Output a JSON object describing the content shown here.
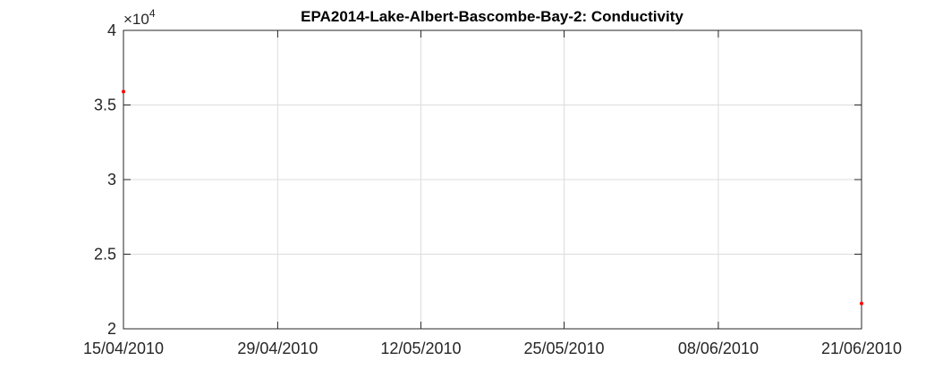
{
  "chart_data": {
    "type": "scatter",
    "title": "EPA2014-Lake-Albert-Bascombe-Bay-2: Conductivity",
    "xlabel": "",
    "ylabel": "",
    "x_tick_labels": [
      "15/04/2010",
      "29/04/2010",
      "12/05/2010",
      "25/05/2010",
      "08/06/2010",
      "21/06/2010"
    ],
    "xlim": [
      "15/04/2010",
      "21/06/2010"
    ],
    "y_tick_labels": [
      "2",
      "2.5",
      "3",
      "3.5",
      "4"
    ],
    "y_ticks": [
      2,
      2.5,
      3,
      3.5,
      4
    ],
    "ylim": [
      2,
      4
    ],
    "y_exponent": {
      "base": "×10",
      "power": "4"
    },
    "grid": true,
    "marker_color": "#ff0000",
    "points": [
      {
        "x": "15/04/2010",
        "y": 3.59
      },
      {
        "x": "21/06/2010",
        "y": 2.17
      }
    ]
  }
}
